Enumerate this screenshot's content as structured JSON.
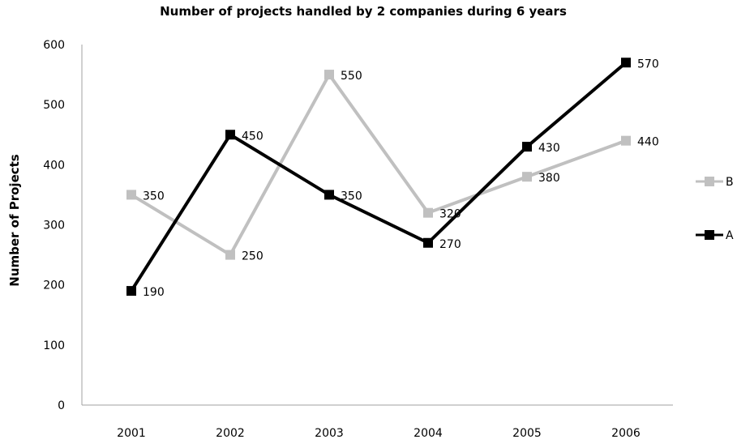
{
  "chart_data": {
    "type": "line",
    "title": "Number of projects handled by 2 companies during 6 years",
    "xlabel": "",
    "ylabel": "Number of Projects",
    "categories": [
      "2001",
      "2002",
      "2003",
      "2004",
      "2005",
      "2006"
    ],
    "ylim": [
      0,
      600
    ],
    "yticks": [
      "0",
      "100",
      "200",
      "300",
      "400",
      "500",
      "600"
    ],
    "grid": false,
    "legend_position": "right",
    "series": [
      {
        "name": "B",
        "values": [
          350,
          250,
          550,
          320,
          380,
          440
        ],
        "color": "#c0c0c0",
        "marker": "square"
      },
      {
        "name": "A",
        "values": [
          190,
          450,
          350,
          270,
          430,
          570
        ],
        "color": "#000000",
        "marker": "square"
      }
    ],
    "data_labels": true
  }
}
